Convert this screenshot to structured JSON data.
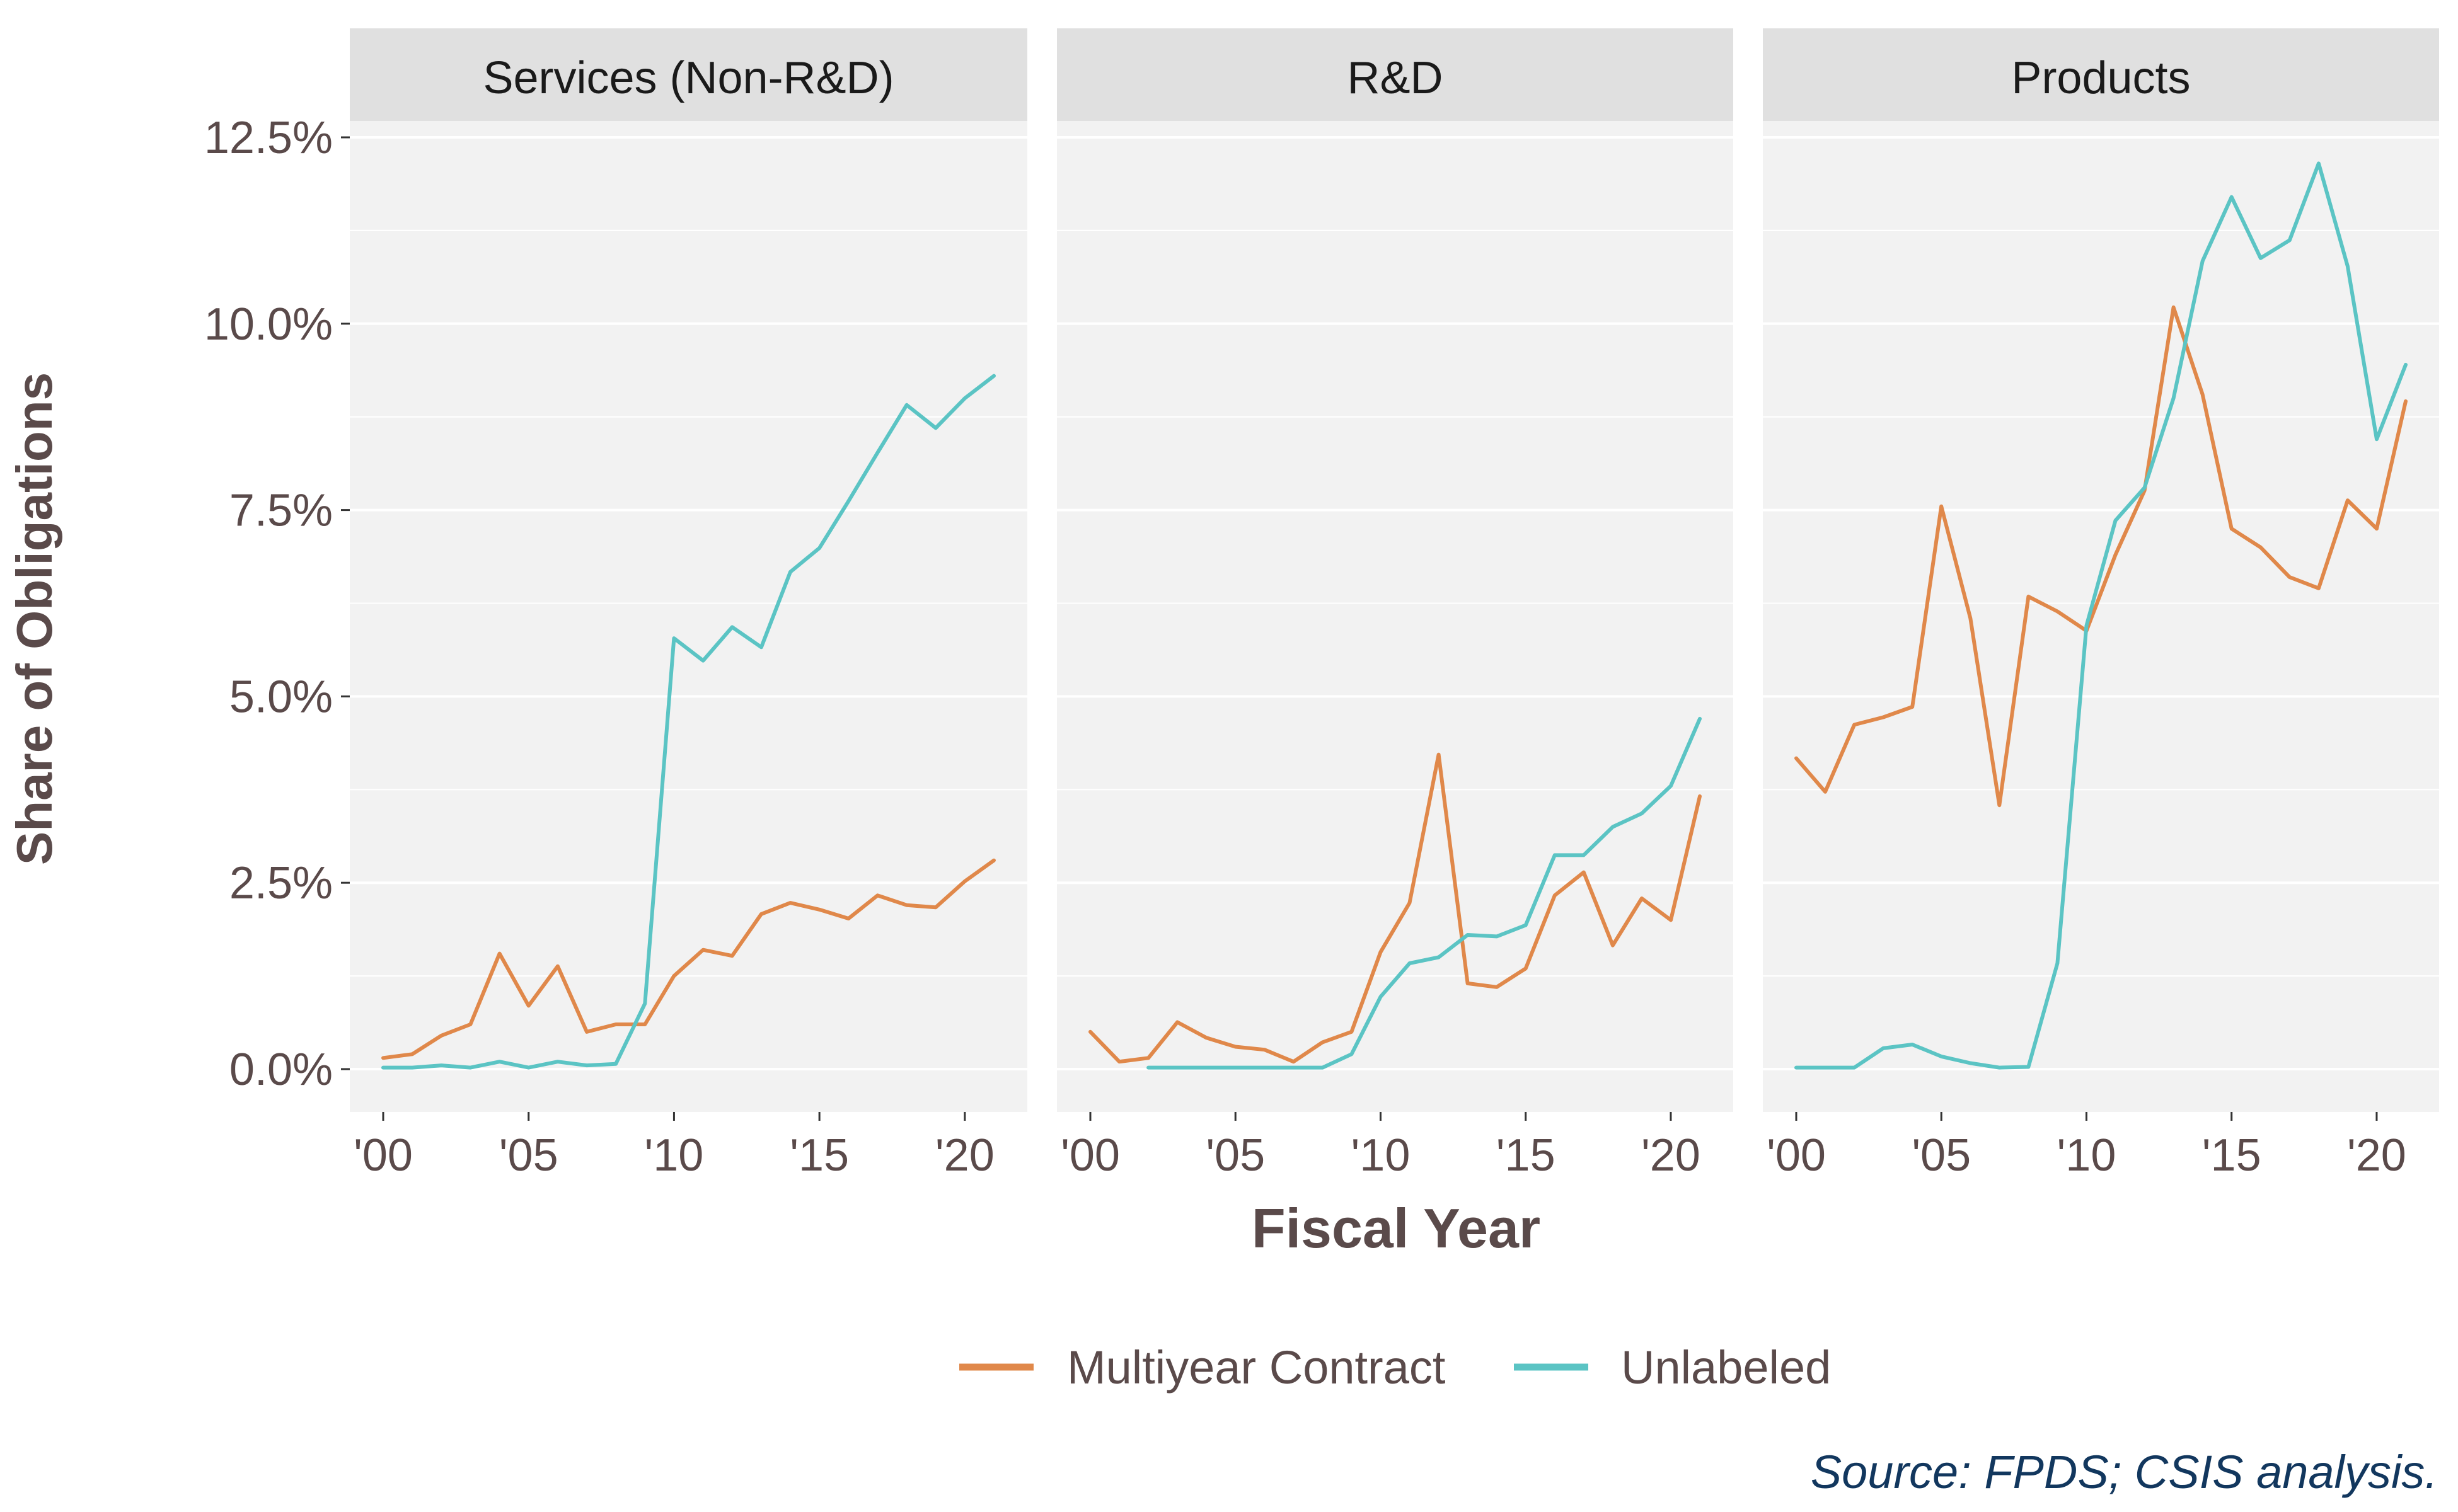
{
  "chart_data": {
    "type": "line",
    "facets": [
      "Services (Non-R&D)",
      "R&D",
      "Products"
    ],
    "xlabel": "Fiscal Year",
    "ylabel": "Share of Obligations",
    "xlim": [
      2000,
      2021
    ],
    "ylim": [
      0,
      12.5
    ],
    "x_tick_values": [
      2000,
      2005,
      2010,
      2015,
      2020
    ],
    "x_tick_labels": [
      "'00",
      "'05",
      "'10",
      "'15",
      "'20"
    ],
    "y_tick_values": [
      0,
      2.5,
      5.0,
      7.5,
      10.0,
      12.5
    ],
    "y_tick_labels": [
      "0.0%",
      "2.5%",
      "5.0%",
      "7.5%",
      "10.0%",
      "12.5%"
    ],
    "grid": true,
    "legend_position": "bottom",
    "legend": [
      {
        "name": "Multiyear Contract",
        "color": "#E0884A"
      },
      {
        "name": "Unlabeled",
        "color": "#5BC4C4"
      }
    ],
    "caption": "Source: FPDS; CSIS analysis.",
    "colors": {
      "panel_bg": "#F2F2F2",
      "strip_bg": "#E0E0E0",
      "grid": "#FFFFFF",
      "text": "#5A4A4A",
      "caption": "#12375E"
    },
    "panels": [
      {
        "title": "Services (Non-R&D)",
        "series": [
          {
            "name": "Multiyear Contract",
            "color": "#E0884A",
            "x": [
              2000,
              2001,
              2002,
              2003,
              2004,
              2005,
              2006,
              2007,
              2008,
              2009,
              2010,
              2011,
              2012,
              2013,
              2014,
              2015,
              2016,
              2017,
              2018,
              2019,
              2020,
              2021
            ],
            "y": [
              0.15,
              0.2,
              0.45,
              0.6,
              1.55,
              0.85,
              1.38,
              0.5,
              0.6,
              0.6,
              1.25,
              1.6,
              1.52,
              2.08,
              2.23,
              2.14,
              2.02,
              2.33,
              2.2,
              2.17,
              2.52,
              2.8
            ]
          },
          {
            "name": "Unlabeled",
            "color": "#5BC4C4",
            "x": [
              2000,
              2001,
              2002,
              2003,
              2004,
              2005,
              2006,
              2007,
              2008,
              2009,
              2010,
              2011,
              2012,
              2013,
              2014,
              2015,
              2016,
              2017,
              2018,
              2019,
              2020,
              2021
            ],
            "y": [
              0.02,
              0.02,
              0.05,
              0.02,
              0.1,
              0.02,
              0.1,
              0.05,
              0.07,
              0.88,
              5.78,
              5.48,
              5.93,
              5.66,
              6.67,
              6.99,
              7.62,
              8.27,
              8.91,
              8.6,
              9.0,
              9.3
            ]
          }
        ]
      },
      {
        "title": "R&D",
        "series": [
          {
            "name": "Multiyear Contract",
            "color": "#E0884A",
            "x": [
              2000,
              2001,
              2002,
              2003,
              2004,
              2005,
              2006,
              2007,
              2008,
              2009,
              2010,
              2011,
              2012,
              2013,
              2014,
              2015,
              2016,
              2017,
              2018,
              2019,
              2020,
              2021
            ],
            "y": [
              0.5,
              0.1,
              0.15,
              0.63,
              0.42,
              0.3,
              0.26,
              0.1,
              0.36,
              0.5,
              1.57,
              2.23,
              4.22,
              1.15,
              1.1,
              1.35,
              2.33,
              2.64,
              1.66,
              2.29,
              2.0,
              3.66
            ]
          },
          {
            "name": "Unlabeled",
            "color": "#5BC4C4",
            "x": [
              2002,
              2003,
              2004,
              2005,
              2006,
              2007,
              2008,
              2009,
              2010,
              2011,
              2012,
              2013,
              2014,
              2015,
              2016,
              2017,
              2018,
              2019,
              2020,
              2021
            ],
            "y": [
              0.02,
              0.02,
              0.02,
              0.02,
              0.02,
              0.02,
              0.02,
              0.2,
              0.97,
              1.42,
              1.5,
              1.8,
              1.78,
              1.93,
              2.87,
              2.87,
              3.25,
              3.43,
              3.8,
              4.7
            ]
          }
        ]
      },
      {
        "title": "Products",
        "series": [
          {
            "name": "Multiyear Contract",
            "color": "#E0884A",
            "x": [
              2000,
              2001,
              2002,
              2003,
              2004,
              2005,
              2006,
              2007,
              2008,
              2009,
              2010,
              2011,
              2012,
              2013,
              2014,
              2015,
              2016,
              2017,
              2018,
              2019,
              2020,
              2021
            ],
            "y": [
              4.17,
              3.72,
              4.62,
              4.72,
              4.86,
              7.55,
              6.05,
              3.54,
              6.34,
              6.14,
              5.88,
              6.9,
              7.76,
              10.22,
              9.05,
              7.25,
              7.0,
              6.6,
              6.45,
              7.63,
              7.25,
              8.96
            ]
          },
          {
            "name": "Unlabeled",
            "color": "#5BC4C4",
            "x": [
              2000,
              2001,
              2002,
              2003,
              2004,
              2005,
              2006,
              2007,
              2008,
              2009,
              2010,
              2011,
              2012,
              2013,
              2014,
              2015,
              2016,
              2017,
              2018,
              2019,
              2020,
              2021
            ],
            "y": [
              0.02,
              0.02,
              0.02,
              0.28,
              0.33,
              0.17,
              0.08,
              0.02,
              0.03,
              1.42,
              5.95,
              7.36,
              7.8,
              9.0,
              10.84,
              11.7,
              10.88,
              11.12,
              12.15,
              10.77,
              8.45,
              9.45
            ]
          }
        ]
      }
    ]
  }
}
